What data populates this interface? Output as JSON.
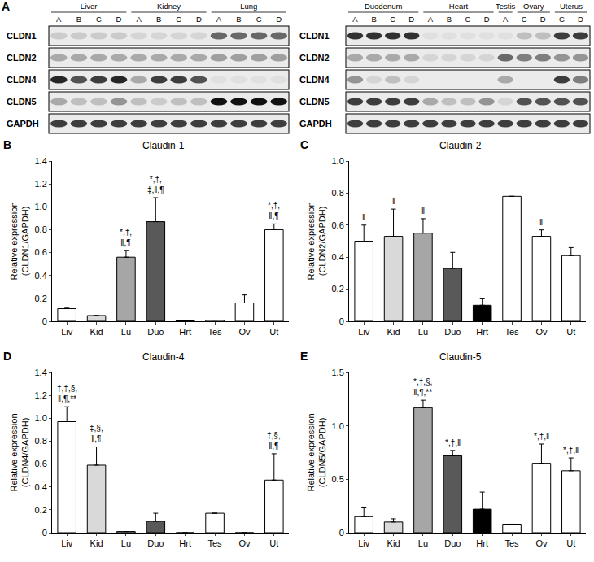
{
  "blot_panel": {
    "panel": "A",
    "rows": [
      "CLDN1",
      "CLDN2",
      "CLDN4",
      "CLDN5",
      "GAPDH"
    ],
    "blots": [
      {
        "tissues": [
          {
            "name": "Liver",
            "lanes": [
              "A",
              "B",
              "C",
              "D"
            ]
          },
          {
            "name": "Kidney",
            "lanes": [
              "A",
              "B",
              "C",
              "D"
            ]
          },
          {
            "name": "Lung",
            "lanes": [
              "A",
              "B",
              "C",
              "D"
            ]
          }
        ],
        "intensity": [
          [
            0.15,
            0.15,
            0.15,
            0.15,
            0.1,
            0.1,
            0.1,
            0.1,
            0.6,
            0.6,
            0.6,
            0.6
          ],
          [
            0.3,
            0.3,
            0.3,
            0.3,
            0.3,
            0.3,
            0.3,
            0.3,
            0.35,
            0.35,
            0.35,
            0.35
          ],
          [
            0.9,
            0.7,
            0.8,
            0.9,
            0.3,
            0.8,
            0.8,
            0.7,
            0.05,
            0.05,
            0.05,
            0.05
          ],
          [
            0.3,
            0.2,
            0.2,
            0.4,
            0.2,
            0.15,
            0.2,
            0.2,
            1.0,
            1.0,
            1.0,
            1.0
          ],
          [
            0.8,
            0.8,
            0.8,
            0.8,
            0.8,
            0.8,
            0.8,
            0.8,
            0.8,
            0.8,
            0.8,
            0.8
          ]
        ]
      },
      {
        "tissues": [
          {
            "name": "Duodenum",
            "lanes": [
              "A",
              "B",
              "C",
              "D"
            ]
          },
          {
            "name": "Heart",
            "lanes": [
              "A",
              "B",
              "C",
              "D"
            ]
          },
          {
            "name": "Testis",
            "lanes": [
              "A"
            ]
          },
          {
            "name": "Ovary",
            "lanes": [
              "C",
              "D"
            ]
          },
          {
            "name": "Uterus",
            "lanes": [
              "C",
              "D"
            ]
          }
        ],
        "intensity": [
          [
            0.85,
            0.85,
            0.85,
            0.85,
            0.05,
            0.05,
            0.05,
            0.05,
            0.05,
            0.2,
            0.2,
            0.8,
            0.8
          ],
          [
            0.3,
            0.3,
            0.3,
            0.3,
            0.1,
            0.1,
            0.1,
            0.1,
            0.6,
            0.5,
            0.5,
            0.4,
            0.4
          ],
          [
            0.4,
            0.1,
            0.2,
            0.1,
            0.0,
            0.0,
            0.0,
            0.0,
            0.3,
            0.0,
            0.0,
            0.8,
            0.5
          ],
          [
            0.8,
            0.8,
            0.8,
            0.8,
            0.3,
            0.2,
            0.2,
            0.4,
            0.1,
            0.7,
            0.7,
            0.7,
            0.7
          ],
          [
            0.8,
            0.8,
            0.8,
            0.8,
            0.8,
            0.8,
            0.8,
            0.8,
            0.8,
            0.8,
            0.8,
            0.8,
            0.8
          ]
        ]
      }
    ]
  },
  "chart_data": [
    {
      "type": "bar",
      "panel": "B",
      "title": "Claudin-1",
      "y_label": [
        "Relative expression",
        "(CLDN1/GAPDH)"
      ],
      "categories": [
        "Liv",
        "Kid",
        "Lu",
        "Duo",
        "Hrt",
        "Tes",
        "Ov",
        "Ut"
      ],
      "values": [
        0.11,
        0.05,
        0.56,
        0.87,
        0.01,
        0.01,
        0.16,
        0.8
      ],
      "errors": [
        0.005,
        null,
        0.06,
        0.21,
        null,
        null,
        0.07,
        0.05
      ],
      "annotations": [
        null,
        null,
        [
          "*,†,",
          "‖,¶"
        ],
        [
          "*,†,",
          "‡,‖,¶"
        ],
        null,
        null,
        null,
        [
          "*,†,",
          "‖,¶"
        ]
      ],
      "colors": [
        "#ffffff",
        "#d9d9d9",
        "#a6a6a6",
        "#595959",
        "#000000",
        "#ffffff",
        "#ffffff",
        "#ffffff"
      ],
      "ylim": [
        0,
        1.4
      ],
      "yticks": [
        0,
        0.2,
        0.4,
        0.6,
        0.8,
        {
          "value": 1,
          "label": "1.0"
        },
        1.2,
        1.4
      ],
      "grid": false
    },
    {
      "type": "bar",
      "panel": "C",
      "title": "Claudin-2",
      "y_label": [
        "Relative expression",
        "(CLDN2/GAPDH)"
      ],
      "categories": [
        "Liv",
        "Kid",
        "Lu",
        "Duo",
        "Hrt",
        "Tes",
        "Ov",
        "Ut"
      ],
      "values": [
        0.5,
        0.53,
        0.55,
        0.33,
        0.1,
        0.78,
        0.53,
        0.41
      ],
      "errors": [
        0.1,
        0.17,
        0.09,
        0.1,
        0.04,
        null,
        0.04,
        0.05
      ],
      "annotations": [
        [
          "‖"
        ],
        [
          "‖"
        ],
        [
          "‖"
        ],
        null,
        null,
        null,
        [
          "‖"
        ],
        null
      ],
      "colors": [
        "#ffffff",
        "#d9d9d9",
        "#a6a6a6",
        "#595959",
        "#000000",
        "#ffffff",
        "#ffffff",
        "#ffffff"
      ],
      "ylim": [
        0,
        1
      ],
      "yticks": [
        0,
        0.2,
        0.4,
        0.6,
        0.8,
        {
          "value": 1,
          "label": "1.0"
        }
      ],
      "grid": false
    },
    {
      "type": "bar",
      "panel": "D",
      "title": "Claudin-4",
      "y_label": [
        "Relative expression",
        "(CLDN4/GAPDH)"
      ],
      "categories": [
        "Liv",
        "Kid",
        "Lu",
        "Duo",
        "Hrt",
        "Tes",
        "Ov",
        "Ut"
      ],
      "values": [
        0.97,
        0.59,
        0.01,
        0.1,
        0,
        0.17,
        0,
        0.46
      ],
      "errors": [
        0.13,
        0.16,
        null,
        0.07,
        null,
        null,
        null,
        0.23
      ],
      "annotations": [
        [
          "†,‡,§,",
          "‖,¶,**"
        ],
        [
          "‡,§,",
          "‖,¶"
        ],
        null,
        null,
        null,
        null,
        null,
        [
          "†,§,",
          "‖,¶"
        ]
      ],
      "colors": [
        "#ffffff",
        "#d9d9d9",
        "#a6a6a6",
        "#595959",
        "#000000",
        "#ffffff",
        "#ffffff",
        "#ffffff"
      ],
      "ylim": [
        0,
        1.4
      ],
      "yticks": [
        0,
        0.2,
        0.4,
        0.6,
        0.8,
        {
          "value": 1,
          "label": "1.0"
        },
        1.2,
        1.4
      ],
      "grid": false
    },
    {
      "type": "bar",
      "panel": "E",
      "title": "Claudin-5",
      "y_label": [
        "Relative expression",
        "(CLDN5/GAPDH)"
      ],
      "categories": [
        "Liv",
        "Kid",
        "Lu",
        "Duo",
        "Hrt",
        "Tes",
        "Ov",
        "Ut"
      ],
      "values": [
        0.15,
        0.1,
        1.17,
        0.72,
        0.22,
        0.08,
        0.65,
        0.58
      ],
      "errors": [
        0.09,
        0.03,
        0.07,
        0.05,
        0.16,
        null,
        0.18,
        0.12
      ],
      "annotations": [
        null,
        null,
        [
          "*,†,§,",
          "‖,¶,**"
        ],
        [
          "*,†,‖"
        ],
        null,
        null,
        [
          "*,†,‖"
        ],
        [
          "*,†,‖"
        ]
      ],
      "colors": [
        "#ffffff",
        "#d9d9d9",
        "#a6a6a6",
        "#595959",
        "#000000",
        "#ffffff",
        "#ffffff",
        "#ffffff"
      ],
      "ylim": [
        0,
        1.5
      ],
      "yticks": [
        0,
        0.5,
        {
          "value": 1,
          "label": "1.0"
        },
        1.5
      ],
      "grid": false
    }
  ]
}
